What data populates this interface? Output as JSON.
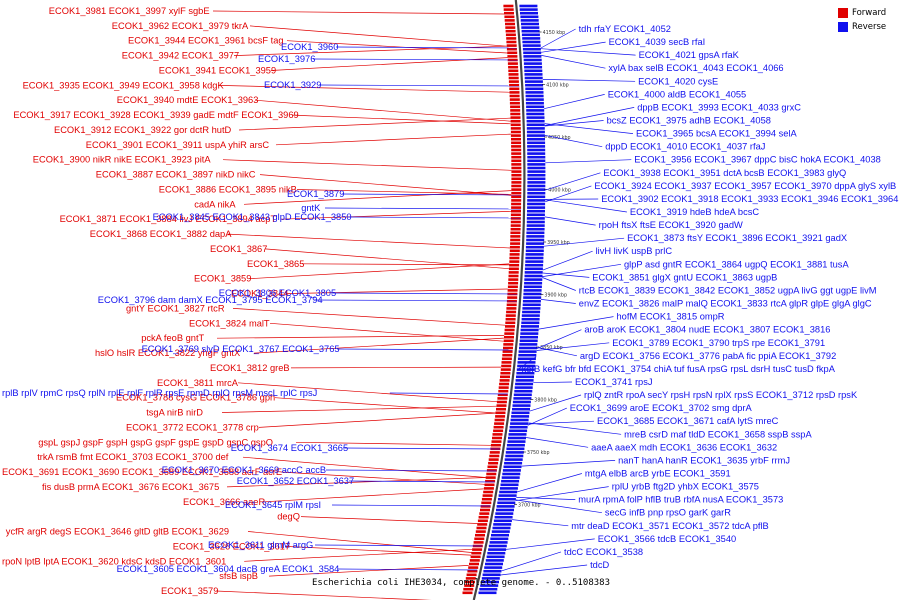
{
  "legend": {
    "forward_label": "Forward",
    "reverse_label": "Reverse",
    "forward_color": "#e00000",
    "reverse_color": "#1010ee"
  },
  "caption": "Escherichia coli IHE3034, complete genome. - 0..5108383",
  "colors": {
    "forward": "#e00000",
    "reverse": "#1010ee",
    "backbone": "#444444"
  },
  "ruler": [
    "4150 kbp",
    "4100 kbp",
    "4050 kbp",
    "4000 kbp",
    "3950 kbp",
    "3900 kbp",
    "3850 kbp",
    "3800 kbp",
    "3750 kbp",
    "3700 kbp"
  ],
  "forward_labels": [
    [
      "ECOK1_3981",
      "ECOK1_3997",
      "xylF",
      "sgbE"
    ],
    [
      "ECOK1_3962",
      "ECOK1_3979",
      "tkrA"
    ],
    [
      "ECOK1_3944",
      "ECOK1_3961",
      "bcsF",
      "tag"
    ],
    [
      "ECOK1_3942",
      "ECOK1_3977"
    ],
    [
      "ECOK1_3941",
      "ECOK1_3959"
    ],
    [
      "ECOK1_3935",
      "ECOK1_3949",
      "ECOK1_3958",
      "kdgK"
    ],
    [
      "ECOK1_3940",
      "mdtE",
      "ECOK1_3963"
    ],
    [
      "ECOK1_3917",
      "ECOK1_3928",
      "ECOK1_3939",
      "gadE",
      "mdtF",
      "ECOK1_3969"
    ],
    [
      "ECOK1_3912",
      "ECOK1_3922",
      "gor",
      "dctR",
      "hutD"
    ],
    [
      "ECOK1_3901",
      "ECOK1_3911",
      "uspA",
      "yhiR",
      "arsC"
    ],
    [
      "ECOK1_3900",
      "nikR",
      "nikE",
      "ECOK1_3923",
      "pitA"
    ],
    [
      "ECOK1_3887",
      "ECOK1_3897",
      "nikD",
      "nikC"
    ],
    [
      "ECOK1_3886",
      "ECOK1_3895",
      "nikB"
    ],
    [
      "cadA",
      "nikA"
    ],
    [
      "ECOK1_3871",
      "ECOK1_3884",
      "livJ",
      "ECOK1_3894",
      "acpT"
    ],
    [
      "ECOK1_3868",
      "ECOK1_3882",
      "dapA"
    ],
    [
      "ECOK1_3867"
    ],
    [
      "ECOK1_3865"
    ],
    [
      "ECOK1_3859"
    ],
    [
      "ECOK1_3844"
    ],
    [
      "gntY",
      "ECOK1_3827",
      "rtcR"
    ],
    [
      "ECOK1_3824",
      "malT"
    ],
    [
      "pckA",
      "feoB",
      "gntT"
    ],
    [
      "hslO",
      "hslR",
      "ECOK1_3822",
      "yhgF",
      "gntX"
    ],
    [
      "ECOK1_3812",
      "greB"
    ],
    [
      "ECOK1_3811",
      "mrcA"
    ],
    [
      "ECOK1_3788",
      "cysG",
      "ECOK1_3786",
      "gph"
    ],
    [
      "tsgA",
      "nirB",
      "nirD"
    ],
    [
      "ECOK1_3772",
      "ECOK1_3778",
      "crp"
    ],
    [
      "gspL",
      "gspJ",
      "gspF",
      "gspH",
      "gspG",
      "gspF",
      "gspE",
      "gspD",
      "gspC",
      "gspO"
    ],
    [
      "trkA",
      "rsmB",
      "fmt",
      "ECOK1_3703",
      "ECOK1_3700",
      "def"
    ],
    [
      "ECOK1_3691",
      "ECOK1_3690",
      "ECOK1_3689",
      "ECOK1_3688",
      "acrF",
      "acrE"
    ],
    [
      "fis",
      "dusB",
      "prmA",
      "ECOK1_3676",
      "ECOK1_3675"
    ],
    [
      "ECOK1_3666",
      "aaeR"
    ],
    [
      "degQ"
    ],
    [
      "ycfR",
      "argR",
      "degS",
      "ECOK1_3646",
      "gltD",
      "gltB",
      "ECOK1_3629"
    ],
    [
      "ECOK1_3626",
      "ECOK1_3617"
    ],
    [
      "rpoN",
      "lptB",
      "lptA",
      "ECOK1_3620",
      "kdsC",
      "kdsD",
      "ECOK1_3601"
    ],
    [
      "sfsB",
      "ispB"
    ],
    [
      "ECOK1_3579"
    ]
  ],
  "reverse_labels": [
    [
      "ECOK1_3976"
    ],
    [
      "ECOK1_3960"
    ],
    [
      "ECOK1_3929"
    ],
    [
      "ECOK1_3879"
    ],
    [
      "gntK"
    ],
    [
      "ECOK1_3845",
      "ECOK1_3843",
      "glpD",
      "ECOK1_3850"
    ],
    [
      "ECOK1_3806",
      "ECOK1_3805"
    ],
    [
      "ECOK1_3796",
      "dam",
      "damX",
      "ECOK1_3795",
      "ECOK1_3794"
    ],
    [
      "ECOK1_3769",
      "slyD",
      "ECOK1_3767",
      "ECOK1_3765"
    ],
    [
      "rplB",
      "rplV",
      "rpmC",
      "rpsQ",
      "rplN",
      "rplE",
      "rplF",
      "rplR",
      "rpsE",
      "rpmD",
      "rplO",
      "rpsM",
      "mscL",
      "rplC",
      "rpsJ"
    ],
    [
      "ECOK1_3674",
      "ECOK1_3665"
    ],
    [
      "ECOK1_3670",
      "ECOK1_3669",
      "accC",
      "accB"
    ],
    [
      "ECOK1_3652",
      "ECOK1_3637"
    ],
    [
      "ECOK1_3645",
      "rplM",
      "rpsI"
    ],
    [
      "ECOK1_3611",
      "glmM",
      "argG"
    ],
    [
      "ECOK1_3605",
      "ECOK1_3604",
      "dacB",
      "greA",
      "ECOK1_3584"
    ],
    [
      "tdh",
      "rfaY",
      "ECOK1_4052"
    ],
    [
      "ECOK1_4039",
      "secB",
      "rfaI"
    ],
    [
      "ECOK1_4021",
      "gpsA",
      "rfaK"
    ],
    [
      "xylA",
      "bax",
      "selB",
      "ECOK1_4043",
      "ECOK1_4066"
    ],
    [
      "ECOK1_4020",
      "cysE"
    ],
    [
      "ECOK1_4000",
      "aldB",
      "ECOK1_4055"
    ],
    [
      "dppB",
      "ECOK1_3993",
      "ECOK1_4033",
      "grxC"
    ],
    [
      "bcsZ",
      "ECOK1_3975",
      "adhB",
      "ECOK1_4058"
    ],
    [
      "ECOK1_3965",
      "bcsA",
      "ECOK1_3994",
      "selA"
    ],
    [
      "dppD",
      "ECOK1_4010",
      "ECOK1_4037",
      "rfaJ"
    ],
    [
      "ECOK1_3956",
      "ECOK1_3967",
      "dppC",
      "bisC",
      "hokA",
      "ECOK1_4038"
    ],
    [
      "ECOK1_3938",
      "ECOK1_3951",
      "dctA",
      "bcsB",
      "ECOK1_3983",
      "glyQ"
    ],
    [
      "ECOK1_3924",
      "ECOK1_3937",
      "ECOK1_3957",
      "ECOK1_3970",
      "dppA",
      "glyS",
      "xylB"
    ],
    [
      "ECOK1_3902",
      "ECOK1_3918",
      "ECOK1_3933",
      "ECOK1_3946",
      "ECOK1_3964"
    ],
    [
      "ECOK1_3919",
      "hdeB",
      "hdeA",
      "bcsC"
    ],
    [
      "rpoH",
      "ftsX",
      "ftsE",
      "ECOK1_3920",
      "gadW"
    ],
    [
      "ECOK1_3873",
      "ftsY",
      "ECOK1_3896",
      "ECOK1_3921",
      "gadX"
    ],
    [
      "livH",
      "livK",
      "uspB",
      "prlC"
    ],
    [
      "glpP",
      "asd",
      "gntR",
      "ECOK1_3864",
      "ugpQ",
      "ECOK1_3881",
      "tusA"
    ],
    [
      "ECOK1_3851",
      "glgX",
      "gntU",
      "ECOK1_3863",
      "ugpB"
    ],
    [
      "rtcB",
      "ECOK1_3839",
      "ECOK1_3842",
      "ECOK1_3852",
      "ugpA",
      "livG",
      "ggt",
      "ugpE",
      "livM"
    ],
    [
      "envZ",
      "ECOK1_3826",
      "malP",
      "malQ",
      "ECOK1_3833",
      "rtcA",
      "glpR",
      "glpE",
      "glgA",
      "glgC"
    ],
    [
      "hofM",
      "ECOK1_3815",
      "ompR"
    ],
    [
      "aroB",
      "aroK",
      "ECOK1_3804",
      "nudE",
      "ECOK1_3807",
      "ECOK1_3816"
    ],
    [
      "ECOK1_3789",
      "ECOK1_3790",
      "trpS",
      "rpe",
      "ECOK1_3791"
    ],
    [
      "argD",
      "ECOK1_3756",
      "ECOK1_3776",
      "pabA",
      "fic",
      "ppiA",
      "ECOK1_3792"
    ],
    [
      "kefB",
      "kefG",
      "bfr",
      "bfd",
      "ECOK1_3754",
      "chiA",
      "tuf",
      "fusA",
      "rpsG",
      "rpsL",
      "dsrH",
      "tusC",
      "tusD",
      "fkpA"
    ],
    [
      "ECOK1_3741",
      "rpsJ"
    ],
    [
      "rplQ",
      "zntR",
      "rpoA",
      "secY",
      "rpsH",
      "rpsN",
      "rplX",
      "rpsS",
      "ECOK1_3712",
      "rpsD",
      "rpsK"
    ],
    [
      "ECOK1_3699",
      "aroE",
      "ECOK1_3702",
      "smg",
      "dprA"
    ],
    [
      "ECOK1_3685",
      "ECOK1_3671",
      "cafA",
      "lytS",
      "mreC"
    ],
    [
      "mreB",
      "csrD",
      "maf",
      "tldD",
      "ECOK1_3658",
      "sspB",
      "sspA"
    ],
    [
      "aaeA",
      "aaeX",
      "mdh",
      "ECOK1_3636",
      "ECOK1_3632"
    ],
    [
      "nanT",
      "hanA",
      "hanR",
      "ECOK1_3635",
      "yrbF",
      "rrmJ"
    ],
    [
      "mtgA",
      "elbB",
      "arcB",
      "yrbE",
      "ECOK1_3591"
    ],
    [
      "rplU",
      "yrbB",
      "ftg2D",
      "yhbX",
      "ECOK1_3575"
    ],
    [
      "murA",
      "rpmA",
      "folP",
      "hflB",
      "truB",
      "rbfA",
      "nusA",
      "ECOK1_3573"
    ],
    [
      "secG",
      "infB",
      "pnp",
      "rpsO",
      "garK",
      "garR"
    ],
    [
      "mtr",
      "deaD",
      "ECOK1_3571",
      "ECOK1_3572",
      "tdcA",
      "pflB"
    ],
    [
      "ECOK1_3566",
      "tdcB",
      "ECOK1_3540"
    ],
    [
      "tdcC",
      "ECOK1_3538"
    ],
    [
      "tdcD"
    ]
  ]
}
